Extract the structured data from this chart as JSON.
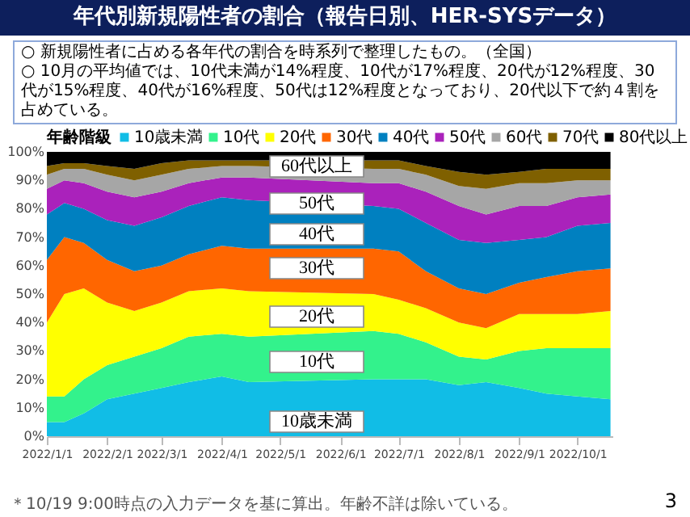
{
  "chart_data": {
    "type": "area",
    "stacked": true,
    "title": "年代別新規陽性者の割合（報告日別、HER-SYSデータ）",
    "subtitle": "○ 新規陽性者に占める各年代の割合を時系列で整理したもの。（全国）",
    "legend_title": "年齢階級",
    "legend": "top",
    "grid": false,
    "x": [
      "2022-01-01",
      "2022-01-10",
      "2022-01-20",
      "2022-02-01",
      "2022-02-15",
      "2022-03-01",
      "2022-03-15",
      "2022-04-01",
      "2022-04-15",
      "2022-06-18",
      "2022-07-01",
      "2022-07-15",
      "2022-08-01",
      "2022-08-15",
      "2022-09-01",
      "2022-09-15",
      "2022-10-01",
      "2022-10-18"
    ],
    "xlim": [
      "2022-01-01",
      "2022-10-19"
    ],
    "xticks": [
      {
        "value": "2022-01-01",
        "label": "2022/1/1"
      },
      {
        "value": "2022-02-01",
        "label": "2022/2/1"
      },
      {
        "value": "2022-03-01",
        "label": "2022/3/1"
      },
      {
        "value": "2022-04-01",
        "label": "2022/4/1"
      },
      {
        "value": "2022-05-01",
        "label": "2022/5/1"
      },
      {
        "value": "2022-06-01",
        "label": "2022/6/1"
      },
      {
        "value": "2022-07-01",
        "label": "2022/7/1"
      },
      {
        "value": "2022-08-01",
        "label": "2022/8/1"
      },
      {
        "value": "2022-09-01",
        "label": "2022/9/1"
      },
      {
        "value": "2022-10-01",
        "label": "2022/10/1"
      }
    ],
    "ylim": [
      0,
      100
    ],
    "yticks": [
      {
        "value": 0,
        "label": "0%"
      },
      {
        "value": 10,
        "label": "10%"
      },
      {
        "value": 20,
        "label": "20%"
      },
      {
        "value": 30,
        "label": "30%"
      },
      {
        "value": 40,
        "label": "40%"
      },
      {
        "value": 50,
        "label": "50%"
      },
      {
        "value": 60,
        "label": "60%"
      },
      {
        "value": 70,
        "label": "70%"
      },
      {
        "value": 80,
        "label": "80%"
      },
      {
        "value": 90,
        "label": "90%"
      },
      {
        "value": 100,
        "label": "100%"
      }
    ],
    "series": [
      {
        "name": "10歳未満",
        "color": "#11bde6",
        "values": [
          5,
          5,
          8,
          13,
          15,
          17,
          19,
          21,
          19,
          20,
          20,
          20,
          18,
          19,
          17,
          15,
          14,
          13
        ]
      },
      {
        "name": "10代",
        "color": "#33f28c",
        "values": [
          9,
          9,
          12,
          12,
          13,
          14,
          16,
          15,
          16,
          17,
          16,
          13,
          10,
          8,
          13,
          16,
          17,
          18
        ]
      },
      {
        "name": "20代",
        "color": "#ffff00",
        "values": [
          26,
          36,
          32,
          22,
          16,
          16,
          16,
          16,
          16,
          13,
          12,
          12,
          12,
          11,
          13,
          12,
          12,
          13
        ]
      },
      {
        "name": "30代",
        "color": "#ff6600",
        "values": [
          22,
          20,
          16,
          15,
          14,
          13,
          13,
          15,
          15,
          16,
          17,
          13,
          12,
          12,
          11,
          13,
          15,
          15
        ]
      },
      {
        "name": "40代",
        "color": "#0080c0",
        "values": [
          16,
          12,
          12,
          14,
          16,
          17,
          17,
          17,
          17,
          15,
          15,
          17,
          17,
          18,
          15,
          14,
          16,
          16
        ]
      },
      {
        "name": "50代",
        "color": "#aa22bb",
        "values": [
          9,
          8,
          9,
          10,
          10,
          9,
          8,
          7,
          8,
          8,
          9,
          11,
          12,
          10,
          12,
          11,
          10,
          10
        ]
      },
      {
        "name": "60代",
        "color": "#a6a6a6",
        "values": [
          5,
          4,
          5,
          6,
          6,
          6,
          5,
          4,
          4,
          5,
          5,
          6,
          7,
          9,
          8,
          8,
          6,
          5
        ]
      },
      {
        "name": "70代",
        "color": "#7f6000",
        "values": [
          3,
          2,
          2,
          3,
          4,
          4,
          3,
          2,
          2,
          3,
          3,
          3,
          5,
          5,
          4,
          5,
          4,
          4
        ]
      },
      {
        "name": "80代以上",
        "color": "#000000",
        "values": [
          5,
          4,
          4,
          5,
          6,
          4,
          3,
          3,
          3,
          3,
          3,
          5,
          7,
          8,
          7,
          6,
          6,
          6
        ]
      }
    ],
    "annotations": [
      "○ 10月の平均値では、10代未満が14%程度、10代が17%程度、20代が12%程度、30代が15%程度、40代が16%程度、50代は12%程度となっており、20代以下で約４割を占めている。",
      "60代以上",
      "50代",
      "40代",
      "30代",
      "20代",
      "10代",
      "10歳未満",
      "＊10/19 9:00時点の入力データを基に算出。年齢不詳は除いている。",
      "3"
    ]
  }
}
